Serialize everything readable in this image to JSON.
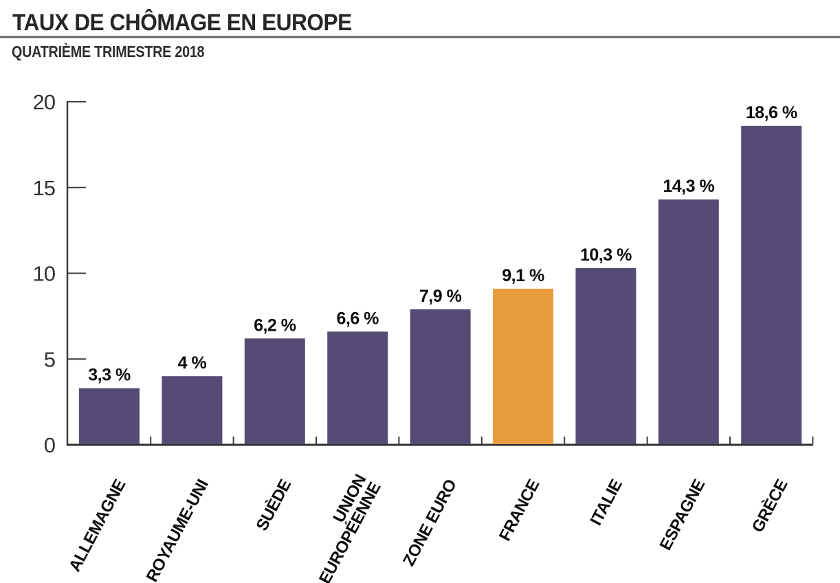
{
  "header": {
    "title": "TAUX DE CHÔMAGE EN EUROPE",
    "subtitle": "QUATRIÈME TRIMESTRE 2018"
  },
  "chart_data": {
    "type": "bar",
    "title": "TAUX DE CHÔMAGE EN EUROPE",
    "subtitle": "QUATRIÈME TRIMESTRE 2018",
    "categories": [
      "ALLEMAGNE",
      "ROYAUME-UNI",
      "SUÈDE",
      "UNION EUROPÉENNE",
      "ZONE EURO",
      "FRANCE",
      "ITALIE",
      "ESPAGNE",
      "GRÈCE"
    ],
    "category_lines": [
      [
        "ALLEMAGNE"
      ],
      [
        "ROYAUME-UNI"
      ],
      [
        "SUÈDE"
      ],
      [
        "UNION",
        "EUROPÉENNE"
      ],
      [
        "ZONE EURO"
      ],
      [
        "FRANCE"
      ],
      [
        "ITALIE"
      ],
      [
        "ESPAGNE"
      ],
      [
        "GRÈCE"
      ]
    ],
    "values": [
      3.3,
      4,
      6.2,
      6.6,
      7.9,
      9.1,
      10.3,
      14.3,
      18.6
    ],
    "value_labels": [
      "3,3 %",
      "4 %",
      "6,2 %",
      "6,6 %",
      "7,9 %",
      "9,1 %",
      "10,3 %",
      "14,3 %",
      "18,6 %"
    ],
    "unit": "%",
    "highlight_index": 5,
    "highlight_category": "FRANCE",
    "bar_color": "#564B74",
    "highlight_color": "#E89C3E",
    "axis_color": "#3c3c3c",
    "label_color": "#0d0d0d",
    "y_ticks": [
      0,
      5,
      10,
      15,
      20
    ],
    "ylim": [
      0,
      20
    ],
    "xlabel": "",
    "ylabel": "",
    "grid": false,
    "legend": false
  }
}
